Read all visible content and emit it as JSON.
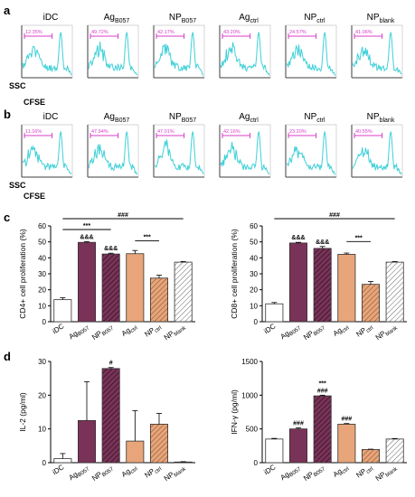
{
  "panel_labels": {
    "a": "a",
    "b": "b",
    "c": "c",
    "d": "d"
  },
  "flow_panels": {
    "a": {
      "ylabel": "SSC",
      "xlabel": "CFSE",
      "histograms": [
        {
          "title_main": "iDC",
          "title_sub": "",
          "gate_label": "12.35%"
        },
        {
          "title_main": "Ag",
          "title_sub": "B057",
          "gate_label": "49.72%"
        },
        {
          "title_main": "NP",
          "title_sub": "B057",
          "gate_label": "42.17%"
        },
        {
          "title_main": "Ag",
          "title_sub": "ctrl",
          "gate_label": "43.20%"
        },
        {
          "title_main": "NP",
          "title_sub": "ctrl",
          "gate_label": "24.57%"
        },
        {
          "title_main": "NP",
          "title_sub": "blank",
          "gate_label": "41.06%"
        }
      ]
    },
    "b": {
      "ylabel": "SSC",
      "xlabel": "CFSE",
      "histograms": [
        {
          "title_main": "iDC",
          "title_sub": "",
          "gate_label": "11.16%"
        },
        {
          "title_main": "Ag",
          "title_sub": "B057",
          "gate_label": "47.94%"
        },
        {
          "title_main": "NP",
          "title_sub": "B057",
          "gate_label": "47.01%"
        },
        {
          "title_main": "Ag",
          "title_sub": "ctrl",
          "gate_label": "42.16%"
        },
        {
          "title_main": "NP",
          "title_sub": "ctrl",
          "gate_label": "23.20%"
        },
        {
          "title_main": "NP",
          "title_sub": "blank",
          "gate_label": "40.55%"
        }
      ]
    }
  },
  "chart_data": [
    {
      "type": "bar",
      "panel": "c",
      "ylabel": "CD4+ cell proliferation (%)",
      "ylim": [
        0,
        60
      ],
      "yticks": [
        "0",
        "10",
        "20",
        "30",
        "40",
        "50",
        "60"
      ],
      "categories": [
        {
          "main": "iDC",
          "sub": ""
        },
        {
          "main": "Ag",
          "sub": "B057"
        },
        {
          "main": "NP",
          "sub": "B057"
        },
        {
          "main": "Ag",
          "sub": "ctrl"
        },
        {
          "main": "NP",
          "sub": "ctrl"
        },
        {
          "main": "NP",
          "sub": "blank"
        }
      ],
      "values": [
        13.8,
        49.7,
        42.4,
        42.6,
        27.3,
        37.3
      ],
      "errors": [
        1.2,
        0.5,
        0.5,
        2.0,
        1.8,
        0.4
      ],
      "colors": [
        "#ffffff",
        "#7a3358",
        "#7a3358",
        "#e8a57a",
        "#e8a57a",
        "#ffffff"
      ],
      "hatched": [
        false,
        false,
        true,
        false,
        true,
        true
      ],
      "bar_marks": [
        "",
        "&&&",
        "&&&",
        "",
        "",
        ""
      ],
      "brackets": [
        {
          "from": 0,
          "to": 5,
          "label": "###"
        },
        {
          "from": 0,
          "to": 2,
          "label": "***"
        },
        {
          "from": 3,
          "to": 4,
          "label": "***"
        }
      ]
    },
    {
      "type": "bar",
      "panel": "c",
      "ylabel": "CD8+ cell proliferation (%)",
      "ylim": [
        0,
        60
      ],
      "yticks": [
        "0",
        "10",
        "20",
        "30",
        "40",
        "50",
        "60"
      ],
      "categories": [
        {
          "main": "iDC",
          "sub": ""
        },
        {
          "main": "Ag",
          "sub": "B057"
        },
        {
          "main": "NP",
          "sub": "B057"
        },
        {
          "main": "Ag",
          "sub": "ctrl"
        },
        {
          "main": "NP",
          "sub": "ctrl"
        },
        {
          "main": "NP",
          "sub": "blank"
        }
      ],
      "values": [
        11.2,
        49.3,
        45.9,
        42.2,
        23.4,
        37.3
      ],
      "errors": [
        0.8,
        0.4,
        1.2,
        0.8,
        1.8,
        0.4
      ],
      "colors": [
        "#ffffff",
        "#7a3358",
        "#7a3358",
        "#e8a57a",
        "#e8a57a",
        "#ffffff"
      ],
      "hatched": [
        false,
        false,
        true,
        false,
        true,
        true
      ],
      "bar_marks": [
        "",
        "&&&",
        "&&&",
        "",
        "",
        ""
      ],
      "brackets": [
        {
          "from": 0,
          "to": 5,
          "label": "###"
        },
        {
          "from": 3,
          "to": 4,
          "label": "***"
        }
      ]
    },
    {
      "type": "bar",
      "panel": "d",
      "ylabel": "IL-2 (pg/ml)",
      "ylim": [
        0,
        30
      ],
      "yticks": [
        "0",
        "10",
        "20",
        "30"
      ],
      "categories": [
        {
          "main": "iDC",
          "sub": ""
        },
        {
          "main": "Ag",
          "sub": "B057"
        },
        {
          "main": "NP",
          "sub": "B057"
        },
        {
          "main": "Ag",
          "sub": "ctrl"
        },
        {
          "main": "NP",
          "sub": "ctrl"
        },
        {
          "main": "NP",
          "sub": "blank"
        }
      ],
      "values": [
        1.2,
        12.5,
        27.9,
        6.4,
        11.4,
        0.2
      ],
      "errors": [
        1.5,
        11.5,
        0.3,
        9.0,
        3.2,
        0.1
      ],
      "colors": [
        "#ffffff",
        "#7a3358",
        "#7a3358",
        "#e8a57a",
        "#e8a57a",
        "#ffffff"
      ],
      "hatched": [
        false,
        false,
        true,
        false,
        true,
        true
      ],
      "bar_marks": [
        "",
        "",
        "#",
        "",
        "",
        ""
      ],
      "brackets": []
    },
    {
      "type": "bar",
      "panel": "d",
      "ylabel": "IFN-γ (pg/ml)",
      "ylim": [
        0,
        1500
      ],
      "yticks": [
        "0",
        "500",
        "1000",
        "1500"
      ],
      "categories": [
        {
          "main": "iDC",
          "sub": ""
        },
        {
          "main": "Ag",
          "sub": "B057"
        },
        {
          "main": "NP",
          "sub": "B057"
        },
        {
          "main": "Ag",
          "sub": "ctrl"
        },
        {
          "main": "NP",
          "sub": "ctrl"
        },
        {
          "main": "NP",
          "sub": "blank"
        }
      ],
      "values": [
        350,
        500,
        990,
        570,
        195,
        350
      ],
      "errors": [
        10,
        15,
        10,
        10,
        5,
        8
      ],
      "colors": [
        "#ffffff",
        "#7a3358",
        "#7a3358",
        "#e8a57a",
        "#e8a57a",
        "#ffffff"
      ],
      "hatched": [
        false,
        false,
        true,
        false,
        true,
        true
      ],
      "bar_marks": [
        "",
        "###",
        "***\n###",
        "###",
        "",
        ""
      ],
      "brackets": []
    }
  ]
}
